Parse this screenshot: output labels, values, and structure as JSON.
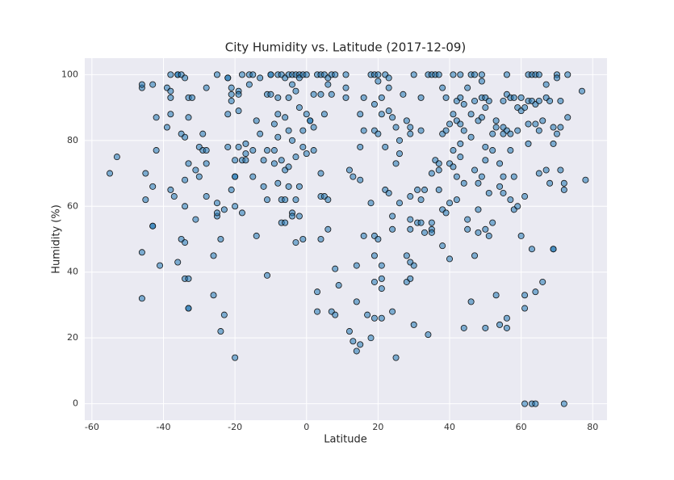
{
  "chart_data": {
    "type": "scatter",
    "title": "City Humidity vs. Latitude (2017-12-09)",
    "x_label": "Latitude",
    "y_label": "Humidity (%)",
    "color": "#1f77b4",
    "grid": true,
    "xlim": [
      -62,
      84
    ],
    "ylim": [
      -5,
      105
    ],
    "xticks": [
      -60,
      -40,
      -20,
      0,
      20,
      40,
      60,
      80
    ],
    "yticks": [
      0,
      20,
      40,
      60,
      80,
      100
    ],
    "x": [
      -55,
      -53,
      -46,
      -46,
      -45,
      -45,
      -46,
      -46,
      -43,
      -43,
      -43,
      -43,
      -42,
      -42,
      -41,
      -39,
      -39,
      -38,
      -38,
      -38,
      -38,
      -38,
      -37,
      -36,
      -36,
      -35,
      -36,
      -35,
      -35,
      -34,
      -34,
      -34,
      -34,
      -34,
      -34,
      -33,
      -33,
      -33,
      -33,
      -33,
      -33,
      -32,
      -31,
      -31,
      -30,
      -30,
      -29,
      -29,
      -28,
      -28,
      -28,
      -28,
      -26,
      -26,
      -25,
      -25,
      -25,
      -25,
      -24,
      -24,
      -23,
      -23,
      -22,
      -22,
      -22,
      -22,
      -21,
      -21,
      -21,
      -21,
      -20,
      -20,
      -20,
      -20,
      -20,
      -19,
      -19,
      -19,
      -19,
      -18,
      -18,
      -18,
      -17,
      -17,
      -17,
      -16,
      -16,
      -15,
      -15,
      -15,
      -14,
      -14,
      -13,
      -13,
      -12,
      -12,
      -11,
      -11,
      -11,
      -11,
      -10,
      -10,
      -10,
      -9,
      -9,
      -9,
      -8,
      -8,
      -8,
      -8,
      -8,
      -7,
      -7,
      -7,
      -7,
      -6,
      -6,
      -6,
      -6,
      -6,
      -5,
      -5,
      -5,
      -5,
      -5,
      -4,
      -4,
      -4,
      -4,
      -4,
      -3,
      -3,
      -3,
      -3,
      -3,
      -2,
      -2,
      -2,
      -2,
      -2,
      -1,
      -1,
      -1,
      -1,
      0,
      0,
      0,
      1,
      1,
      2,
      2,
      2,
      3,
      3,
      3,
      4,
      4,
      4,
      4,
      4,
      5,
      5,
      5,
      6,
      6,
      6,
      6,
      7,
      7,
      7,
      8,
      8,
      8,
      9,
      11,
      11,
      11,
      12,
      12,
      13,
      13,
      14,
      14,
      14,
      15,
      15,
      15,
      15,
      16,
      16,
      16,
      17,
      18,
      18,
      18,
      19,
      19,
      19,
      19,
      19,
      19,
      19,
      20,
      20,
      20,
      20,
      21,
      21,
      21,
      21,
      21,
      21,
      22,
      22,
      22,
      23,
      23,
      23,
      23,
      24,
      24,
      24,
      24,
      25,
      25,
      25,
      26,
      26,
      26,
      27,
      28,
      28,
      28,
      29,
      29,
      29,
      29,
      29,
      29,
      29,
      30,
      30,
      30,
      31,
      31,
      32,
      32,
      32,
      32,
      33,
      33,
      34,
      34,
      35,
      35,
      35,
      35,
      35,
      36,
      36,
      37,
      37,
      37,
      37,
      38,
      38,
      38,
      38,
      39,
      39,
      39,
      40,
      40,
      40,
      40,
      41,
      41,
      41,
      41,
      42,
      42,
      42,
      42,
      43,
      43,
      43,
      43,
      43,
      44,
      44,
      44,
      44,
      45,
      45,
      45,
      46,
      46,
      46,
      46,
      47,
      47,
      47,
      47,
      48,
      48,
      48,
      48,
      49,
      49,
      49,
      49,
      49,
      50,
      50,
      50,
      50,
      50,
      50,
      51,
      51,
      51,
      52,
      52,
      52,
      53,
      53,
      53,
      54,
      54,
      54,
      55,
      55,
      55,
      55,
      55,
      56,
      56,
      56,
      56,
      56,
      57,
      57,
      57,
      57,
      58,
      58,
      58,
      59,
      59,
      59,
      60,
      60,
      60,
      61,
      61,
      61,
      61,
      61,
      62,
      62,
      62,
      62,
      63,
      63,
      63,
      63,
      64,
      64,
      64,
      64,
      64,
      65,
      65,
      65,
      65,
      66,
      66,
      67,
      67,
      67,
      68,
      68,
      69,
      69,
      69,
      69,
      70,
      70,
      70,
      71,
      71,
      71,
      72,
      72,
      72,
      73,
      73,
      77,
      78
    ],
    "values": [
      70,
      75,
      96,
      97,
      70,
      62,
      46,
      32,
      97,
      66,
      54,
      54,
      87,
      77,
      42,
      96,
      84,
      100,
      95,
      93,
      88,
      65,
      63,
      100,
      100,
      100,
      43,
      50,
      82,
      81,
      49,
      38,
      60,
      68,
      99,
      93,
      87,
      73,
      29,
      29,
      38,
      93,
      71,
      56,
      69,
      78,
      82,
      77,
      77,
      63,
      96,
      73,
      45,
      33,
      57,
      58,
      61,
      100,
      50,
      22,
      27,
      59,
      99,
      99,
      88,
      78,
      96,
      94,
      92,
      65,
      60,
      69,
      69,
      74,
      14,
      89,
      78,
      95,
      94,
      100,
      58,
      74,
      76,
      79,
      74,
      97,
      100,
      100,
      77,
      69,
      86,
      51,
      99,
      82,
      74,
      66,
      94,
      77,
      62,
      39,
      100,
      100,
      94,
      85,
      77,
      73,
      100,
      93,
      88,
      81,
      67,
      100,
      74,
      62,
      55,
      99,
      87,
      71,
      62,
      55,
      100,
      93,
      83,
      72,
      66,
      100,
      97,
      80,
      58,
      57,
      100,
      95,
      75,
      62,
      49,
      100,
      99,
      90,
      66,
      57,
      100,
      83,
      78,
      50,
      100,
      88,
      76,
      86,
      86,
      94,
      84,
      77,
      100,
      34,
      28,
      100,
      94,
      70,
      63,
      50,
      100,
      88,
      63,
      99,
      97,
      53,
      62,
      100,
      94,
      28,
      100,
      41,
      27,
      36,
      100,
      96,
      93,
      71,
      22,
      19,
      69,
      42,
      16,
      31,
      18,
      88,
      78,
      68,
      93,
      83,
      51,
      27,
      100,
      61,
      20,
      100,
      91,
      83,
      51,
      37,
      45,
      26,
      100,
      98,
      82,
      50,
      93,
      88,
      42,
      35,
      38,
      26,
      100,
      78,
      65,
      99,
      96,
      89,
      64,
      87,
      57,
      53,
      28,
      84,
      73,
      14,
      80,
      61,
      76,
      94,
      86,
      45,
      37,
      84,
      82,
      63,
      56,
      53,
      43,
      38,
      100,
      42,
      24,
      65,
      55,
      93,
      83,
      62,
      55,
      52,
      65,
      100,
      21,
      100,
      70,
      55,
      53,
      52,
      100,
      74,
      100,
      73,
      71,
      65,
      96,
      82,
      59,
      48,
      93,
      83,
      58,
      85,
      73,
      61,
      44,
      100,
      88,
      77,
      72,
      92,
      86,
      69,
      62,
      100,
      93,
      79,
      75,
      85,
      91,
      83,
      67,
      23,
      96,
      56,
      53,
      100,
      88,
      81,
      31,
      100,
      92,
      45,
      71,
      86,
      67,
      59,
      52,
      100,
      98,
      93,
      87,
      69,
      93,
      90,
      78,
      74,
      53,
      23,
      92,
      64,
      51,
      82,
      77,
      55,
      86,
      84,
      33,
      73,
      66,
      24,
      92,
      84,
      82,
      69,
      64,
      100,
      94,
      83,
      26,
      23,
      93,
      82,
      77,
      62,
      93,
      69,
      59,
      90,
      83,
      60,
      93,
      51,
      89,
      90,
      63,
      33,
      29,
      0,
      100,
      92,
      85,
      79,
      100,
      92,
      47,
      0,
      100,
      91,
      85,
      0,
      34,
      100,
      92,
      83,
      70,
      86,
      37,
      97,
      93,
      71,
      92,
      67,
      84,
      79,
      47,
      47,
      100,
      99,
      82,
      92,
      71,
      84,
      67,
      65,
      0,
      87,
      100,
      95,
      68
    ]
  }
}
